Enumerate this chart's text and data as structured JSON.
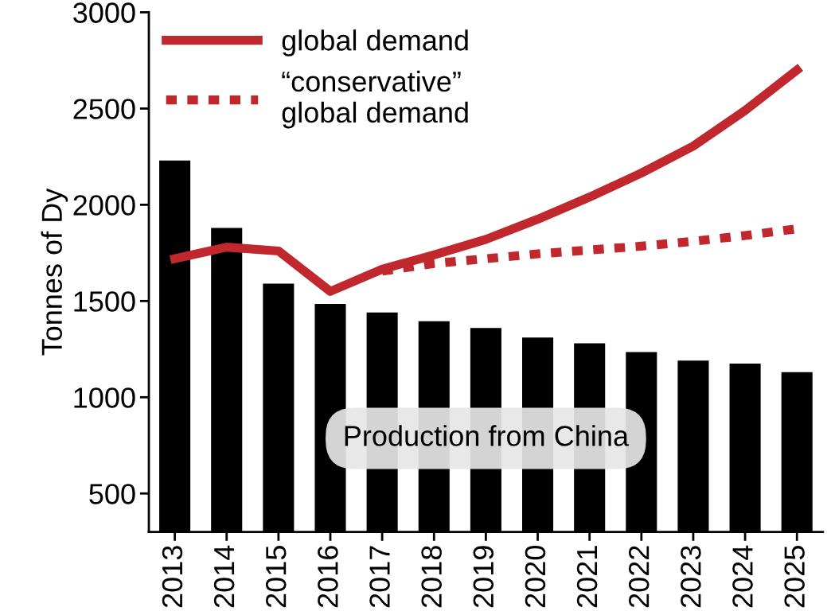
{
  "chart_data": {
    "type": "bar",
    "ylabel": "Tonnes of Dy",
    "categories": [
      "2013",
      "2014",
      "2015",
      "2016",
      "2017",
      "2018",
      "2019",
      "2020",
      "2021",
      "2022",
      "2023",
      "2024",
      "2025"
    ],
    "series": [
      {
        "color": "#000000",
        "values": [
          2230,
          1880,
          1590,
          1485,
          1440,
          1395,
          1360,
          1310,
          1280,
          1235,
          1190,
          1175,
          1130
        ]
      },
      {
        "type": "line",
        "name": "global demand",
        "color": "#c0282d",
        "line_style": "solid",
        "values": [
          1720,
          1780,
          1760,
          1550,
          1665,
          1740,
          1820,
          1925,
          2040,
          2165,
          2305,
          2490,
          2700
        ]
      },
      {
        "type": "line",
        "name": "“conservative”\nglobal demand",
        "color": "#c0282d",
        "line_style": "dashed",
        "values": [
          null,
          null,
          null,
          null,
          1655,
          1695,
          1720,
          1745,
          1765,
          1785,
          1810,
          1840,
          1875
        ]
      }
    ],
    "ylim": [
      300,
      3000
    ],
    "yticks": [
      500,
      1000,
      1500,
      2000,
      2500,
      3000
    ],
    "grid": false,
    "legend": "top left",
    "marker": "none",
    "annotations": [
      "Production from China"
    ]
  }
}
